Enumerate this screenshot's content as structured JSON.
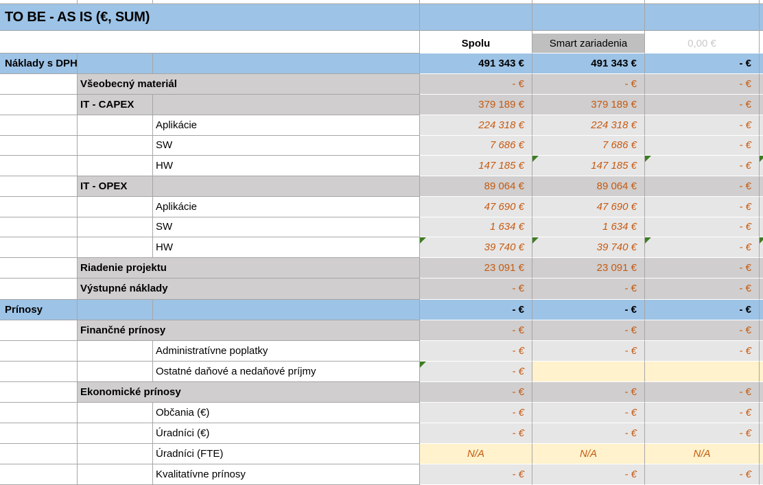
{
  "title": "TO BE - AS IS (€, SUM)",
  "header": {
    "spolu": "Spolu",
    "smart": "Smart zariadenia",
    "third": "0,00 €"
  },
  "colors": {
    "blue_band": "#9DC3E6",
    "category_gray": "#D0CECE",
    "item_gray": "#E7E6E6",
    "smart_header_gray": "#BFBFBF",
    "highlight_yellow": "#FFF2CC",
    "value_orange": "#C55A11",
    "muted_header_text": "#C9C9C9",
    "gridline": "#A6A6A6",
    "flag_green": "#3E7D23"
  },
  "rows": [
    {
      "label": "Náklady s DPH",
      "values": [
        "491 343 €",
        "491 343 €",
        "- €"
      ],
      "green_triangles": []
    },
    {
      "label": "Všeobecný materiál",
      "values": [
        "- €",
        "- €",
        "- €"
      ],
      "green_triangles": []
    },
    {
      "label": "IT - CAPEX",
      "values": [
        "379 189 €",
        "379 189 €",
        "- €"
      ],
      "green_triangles": []
    },
    {
      "label": "Aplikácie",
      "values": [
        "224 318 €",
        "224 318 €",
        "- €"
      ],
      "green_triangles": []
    },
    {
      "label": "SW",
      "values": [
        "7 686 €",
        "7 686 €",
        "- €"
      ],
      "green_triangles": []
    },
    {
      "label": "HW",
      "values": [
        "147 185 €",
        "147 185 €",
        "- €"
      ],
      "green_triangles": [
        "smart",
        "third",
        "edge"
      ]
    },
    {
      "label": "IT - OPEX",
      "values": [
        "89 064 €",
        "89 064 €",
        "- €"
      ],
      "green_triangles": []
    },
    {
      "label": "Aplikácie",
      "values": [
        "47 690 €",
        "47 690 €",
        "- €"
      ],
      "green_triangles": []
    },
    {
      "label": "SW",
      "values": [
        "1 634 €",
        "1 634 €",
        "- €"
      ],
      "green_triangles": []
    },
    {
      "label": "HW",
      "values": [
        "39 740 €",
        "39 740 €",
        "- €"
      ],
      "green_triangles": [
        "spolu",
        "smart",
        "third",
        "edge"
      ]
    },
    {
      "label": "Riadenie projektu",
      "values": [
        "23 091 €",
        "23 091 €",
        "- €"
      ],
      "green_triangles": []
    },
    {
      "label": "Výstupné náklady",
      "values": [
        "- €",
        "- €",
        "- €"
      ],
      "green_triangles": []
    },
    {
      "label": "Prínosy",
      "values": [
        "- €",
        "- €",
        "- €"
      ],
      "green_triangles": []
    },
    {
      "label": "Finančné prínosy",
      "values": [
        "- €",
        "- €",
        "- €"
      ],
      "green_triangles": []
    },
    {
      "label": "Administratívne poplatky",
      "values": [
        "- €",
        "- €",
        "- €"
      ],
      "green_triangles": []
    },
    {
      "label": "Ostatné daňové a nedaňové príjmy",
      "values": [
        "- €",
        "",
        ""
      ],
      "green_triangles": [
        "spolu"
      ],
      "yellow_cells": [
        "smart",
        "third",
        "edge"
      ]
    },
    {
      "label": "Ekonomické prínosy",
      "values": [
        "- €",
        "- €",
        "- €"
      ],
      "green_triangles": []
    },
    {
      "label": "Občania (€)",
      "values": [
        "- €",
        "- €",
        "- €"
      ],
      "green_triangles": []
    },
    {
      "label": "Úradníci (€)",
      "values": [
        "- €",
        "- €",
        "- €"
      ],
      "green_triangles": []
    },
    {
      "label": "Úradníci (FTE)",
      "values": [
        "N/A",
        "N/A",
        "N/A"
      ],
      "green_triangles": [],
      "yellow_cells": [
        "spolu",
        "smart",
        "third",
        "edge"
      ]
    },
    {
      "label": "Kvalitatívne prínosy",
      "values": [
        "- €",
        "- €",
        "- €"
      ],
      "green_triangles": []
    }
  ]
}
